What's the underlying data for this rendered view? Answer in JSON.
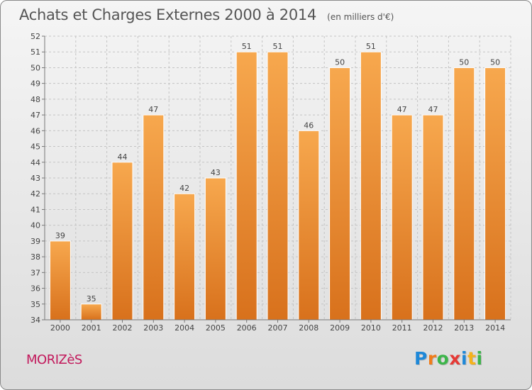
{
  "title": "Achats et Charges Externes 2000 à 2014",
  "subtitle": "(en milliers d'€)",
  "place_name": "MORIZèS",
  "brand": {
    "letters": [
      "P",
      "r",
      "o",
      "x",
      "i",
      "t",
      "i"
    ],
    "colors": [
      "#1e88d8",
      "#f07c1a",
      "#3cb54a",
      "#e53935",
      "#1e88d8",
      "#f5b21b",
      "#3cb54a"
    ]
  },
  "chart_data": {
    "type": "bar",
    "categories": [
      "2000",
      "2001",
      "2002",
      "2003",
      "2004",
      "2005",
      "2006",
      "2007",
      "2008",
      "2009",
      "2010",
      "2011",
      "2012",
      "2013",
      "2014"
    ],
    "values": [
      39,
      35,
      44,
      47,
      42,
      43,
      51,
      51,
      46,
      50,
      51,
      47,
      47,
      50,
      50
    ],
    "ylim": [
      34,
      52
    ],
    "yticks": [
      34,
      35,
      36,
      37,
      38,
      39,
      40,
      41,
      42,
      43,
      44,
      45,
      46,
      47,
      48,
      49,
      50,
      51,
      52
    ],
    "grid": true,
    "bar_color": "#f0902e"
  }
}
